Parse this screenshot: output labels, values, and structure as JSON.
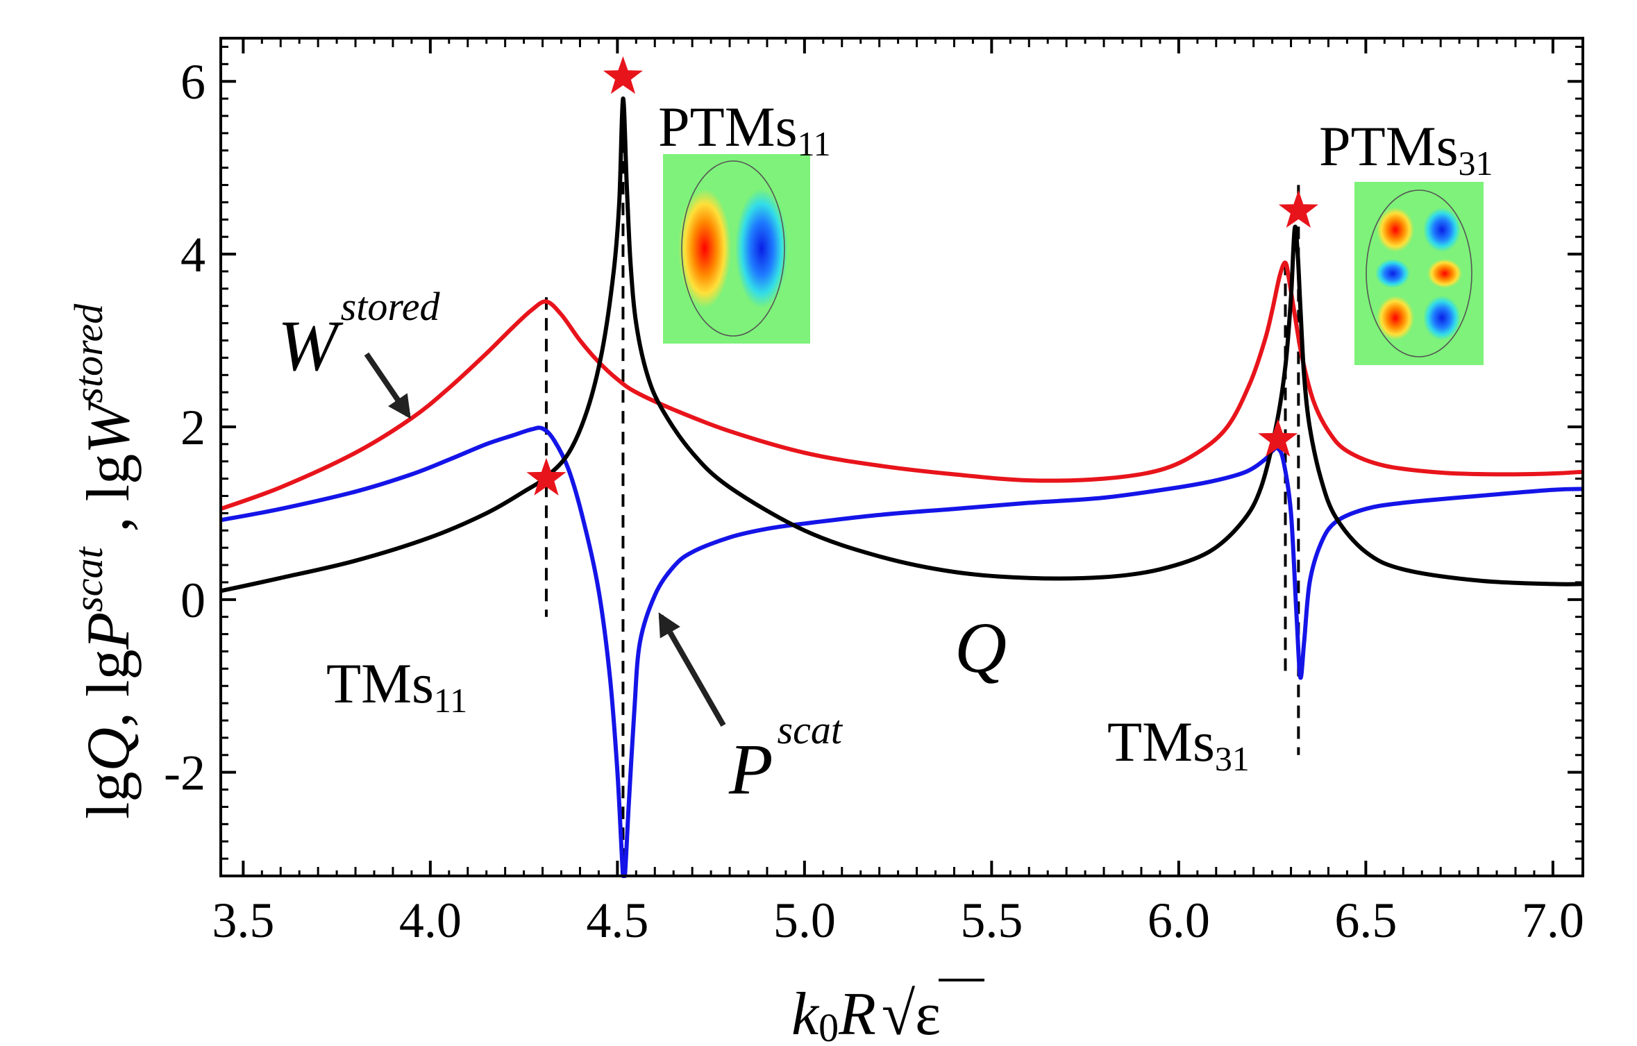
{
  "chart_data": {
    "type": "line",
    "title": "",
    "xlabel": "k0R √ε",
    "xlabel_parts": {
      "k": "k",
      "zero": "0",
      "R": "R",
      "sqrt": "√",
      "eps": "ε"
    },
    "ylabel": "lgQ, lgP^scat, lgW^stored",
    "ylabel_parts": {
      "lg1": "lg",
      "Q": "Q",
      "sep1": ", ",
      "lg2": "lg",
      "P": "P",
      "scat": "scat",
      "sep2": " , ",
      "lg3": "lg",
      "W": "W",
      "stored": "stored"
    },
    "xlim": [
      3.44,
      7.08
    ],
    "ylim": [
      -3.2,
      6.5
    ],
    "grid": false,
    "x_ticks": [
      3.5,
      4.0,
      4.5,
      5.0,
      5.5,
      6.0,
      6.5,
      7.0
    ],
    "x_tick_labels": [
      "3.5",
      "4.0",
      "4.5",
      "5.0",
      "5.5",
      "6.0",
      "6.5",
      "7.0"
    ],
    "y_ticks": [
      -2,
      0,
      2,
      4,
      6
    ],
    "y_tick_labels": [
      "-2",
      "0",
      "2",
      "4",
      "6"
    ],
    "series": [
      {
        "name": "W^stored",
        "color": "#e8141b",
        "x": [
          3.44,
          3.6,
          3.8,
          3.95,
          4.05,
          4.15,
          4.22,
          4.27,
          4.31,
          4.35,
          4.4,
          4.45,
          4.5,
          4.55,
          4.65,
          4.8,
          5.0,
          5.2,
          5.4,
          5.6,
          5.8,
          5.95,
          6.05,
          6.13,
          6.19,
          6.23,
          6.25,
          6.27,
          6.285,
          6.295,
          6.31,
          6.33,
          6.36,
          6.4,
          6.45,
          6.55,
          6.7,
          6.85,
          7.0,
          7.08
        ],
        "y": [
          1.05,
          1.3,
          1.7,
          2.1,
          2.45,
          2.85,
          3.15,
          3.35,
          3.45,
          3.3,
          3.0,
          2.75,
          2.55,
          2.4,
          2.2,
          1.95,
          1.7,
          1.55,
          1.45,
          1.38,
          1.4,
          1.5,
          1.7,
          2.0,
          2.5,
          3.0,
          3.35,
          3.75,
          3.9,
          3.7,
          3.3,
          2.8,
          2.3,
          1.95,
          1.72,
          1.55,
          1.47,
          1.45,
          1.46,
          1.48
        ]
      },
      {
        "name": "P^scat",
        "color": "#1414e8",
        "x": [
          3.44,
          3.6,
          3.8,
          3.95,
          4.05,
          4.15,
          4.22,
          4.27,
          4.3,
          4.33,
          4.37,
          4.41,
          4.45,
          4.48,
          4.5,
          4.515,
          4.52,
          4.53,
          4.545,
          4.56,
          4.6,
          4.65,
          4.7,
          4.8,
          4.9,
          5.0,
          5.2,
          5.4,
          5.6,
          5.8,
          6.0,
          6.1,
          6.18,
          6.23,
          6.25,
          6.265,
          6.28,
          6.3,
          6.315,
          6.325,
          6.335,
          6.35,
          6.38,
          6.42,
          6.5,
          6.6,
          6.8,
          7.0,
          7.08
        ],
        "y": [
          0.92,
          1.05,
          1.25,
          1.45,
          1.62,
          1.8,
          1.9,
          1.97,
          1.98,
          1.85,
          1.5,
          0.9,
          0.1,
          -0.9,
          -2.0,
          -3.3,
          -3.3,
          -2.4,
          -1.3,
          -0.5,
          0.05,
          0.38,
          0.55,
          0.72,
          0.82,
          0.88,
          0.98,
          1.05,
          1.12,
          1.18,
          1.3,
          1.38,
          1.48,
          1.62,
          1.72,
          1.75,
          1.6,
          1.0,
          -0.2,
          -0.9,
          -0.5,
          0.2,
          0.65,
          0.9,
          1.05,
          1.12,
          1.2,
          1.27,
          1.28
        ]
      },
      {
        "name": "Q",
        "color": "#000000",
        "x": [
          3.44,
          3.6,
          3.8,
          4.0,
          4.15,
          4.25,
          4.31,
          4.37,
          4.42,
          4.46,
          4.49,
          4.505,
          4.515,
          4.525,
          4.535,
          4.55,
          4.58,
          4.62,
          4.7,
          4.8,
          5.0,
          5.2,
          5.4,
          5.6,
          5.8,
          5.95,
          6.08,
          6.17,
          6.22,
          6.26,
          6.285,
          6.3,
          6.31,
          6.318,
          6.325,
          6.335,
          6.35,
          6.38,
          6.42,
          6.5,
          6.6,
          6.8,
          7.0,
          7.08
        ],
        "y": [
          0.1,
          0.25,
          0.45,
          0.72,
          1.0,
          1.25,
          1.42,
          1.7,
          2.2,
          2.9,
          3.8,
          4.6,
          5.8,
          4.8,
          3.9,
          3.2,
          2.6,
          2.2,
          1.7,
          1.3,
          0.8,
          0.5,
          0.32,
          0.25,
          0.26,
          0.35,
          0.55,
          0.9,
          1.3,
          2.0,
          2.7,
          3.5,
          4.3,
          4.0,
          3.4,
          2.6,
          2.0,
          1.4,
          0.95,
          0.55,
          0.35,
          0.22,
          0.18,
          0.18
        ]
      }
    ],
    "reference_lines": [
      {
        "x": 4.31,
        "y_top": 3.5,
        "y_bottom": -0.2
      },
      {
        "x": 4.515,
        "y_top": 5.8,
        "y_bottom": -3.3
      },
      {
        "x": 6.285,
        "y_top": 3.9,
        "y_bottom": -0.9
      },
      {
        "x": 6.32,
        "y_top": 4.8,
        "y_bottom": -1.8
      }
    ],
    "markers": [
      {
        "x": 4.31,
        "y": 1.4,
        "color": "#e8141b"
      },
      {
        "x": 4.515,
        "y": 6.05,
        "color": "#e8141b"
      },
      {
        "x": 6.265,
        "y": 1.85,
        "color": "#e8141b"
      },
      {
        "x": 6.32,
        "y": 4.5,
        "color": "#e8141b"
      }
    ],
    "annotations": {
      "ptms11": {
        "main": "PTMs",
        "sub": "11"
      },
      "ptms31": {
        "main": "PTMs",
        "sub": "31"
      },
      "tms11": {
        "main": "TMs",
        "sub": "11"
      },
      "tms31": {
        "main": "TMs",
        "sub": "31"
      },
      "w_label": {
        "main": "W",
        "sup": "stored"
      },
      "p_label": {
        "main": "P",
        "sup": "scat"
      },
      "q_label": "Q"
    },
    "insets": [
      {
        "mode": "PTMs11",
        "background": "#7ef27a",
        "lobes": [
          "red",
          "blue"
        ]
      },
      {
        "mode": "PTMs31",
        "background": "#7ef27a",
        "lobes": [
          "red",
          "blue",
          "blue",
          "red",
          "red",
          "blue"
        ]
      }
    ]
  }
}
